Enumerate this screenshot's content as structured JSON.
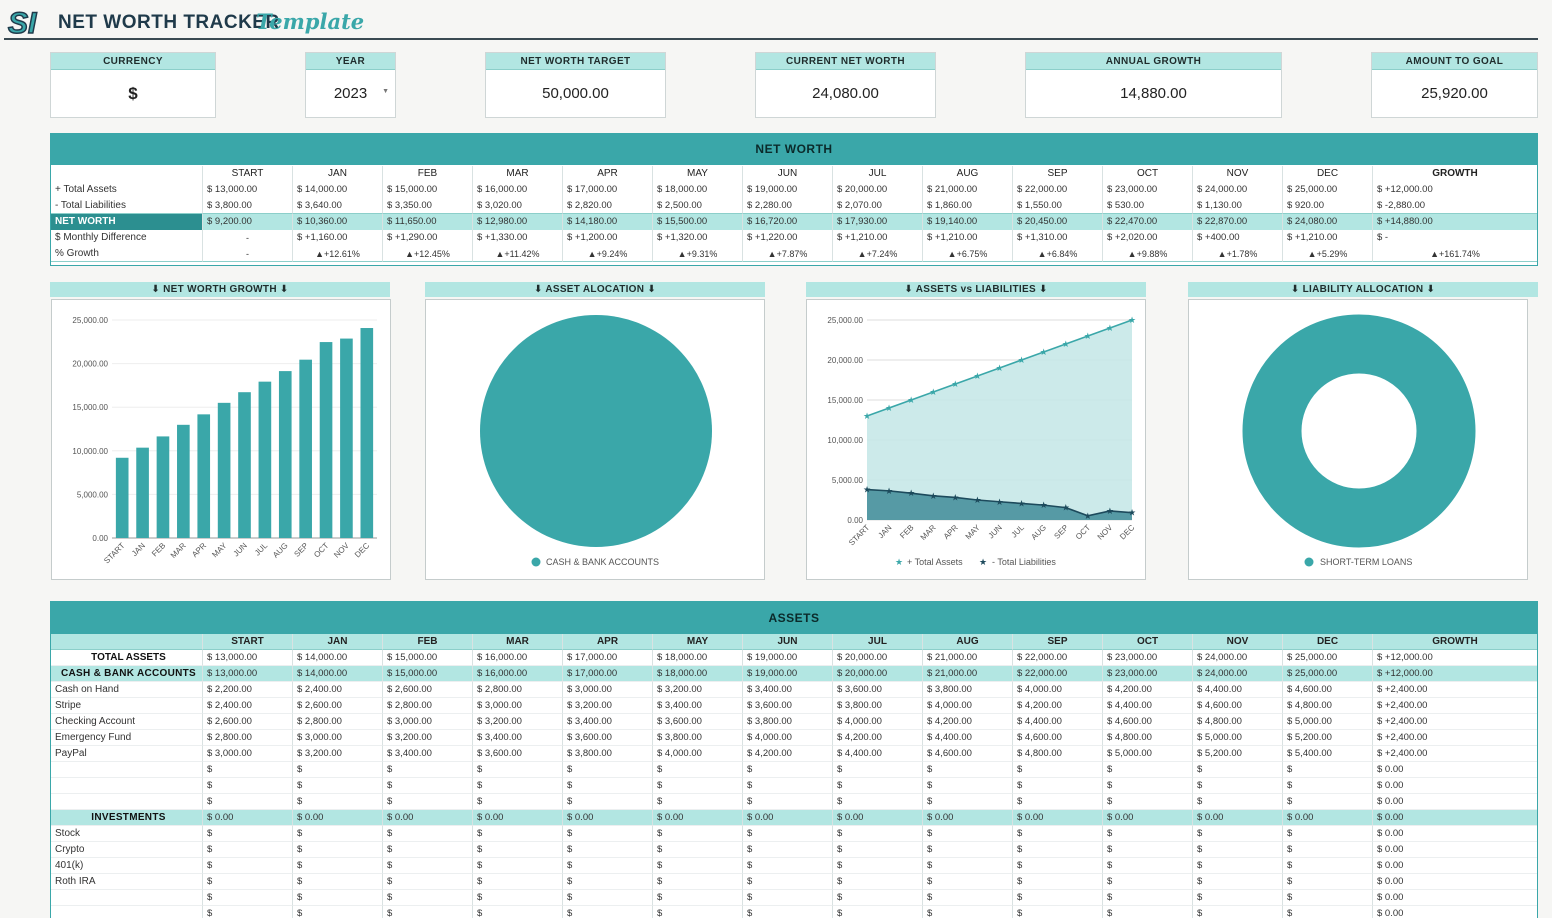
{
  "header": {
    "logo_text": "SI",
    "title": "NET WORTH TRACKER",
    "subtitle": "Template"
  },
  "kpis": {
    "currency_label": "CURRENCY",
    "currency_value": "$",
    "year_label": "YEAR",
    "year_value": "2023",
    "target_label": "NET WORTH TARGET",
    "target_value": "50,000.00",
    "current_label": "CURRENT NET WORTH",
    "current_value": "24,080.00",
    "growth_label": "ANNUAL GROWTH",
    "growth_value": "14,880.00",
    "goal_label": "AMOUNT TO GOAL",
    "goal_value": "25,920.00"
  },
  "net_worth": {
    "title": "NET WORTH",
    "columns": [
      "START",
      "JAN",
      "FEB",
      "MAR",
      "APR",
      "MAY",
      "JUN",
      "JUL",
      "AUG",
      "SEP",
      "OCT",
      "NOV",
      "DEC",
      "GROWTH"
    ],
    "rows": [
      {
        "label": "+ Total Assets",
        "cells": [
          "$  13,000.00",
          "$  14,000.00",
          "$  15,000.00",
          "$  16,000.00",
          "$  17,000.00",
          "$  18,000.00",
          "$  19,000.00",
          "$  20,000.00",
          "$  21,000.00",
          "$  22,000.00",
          "$  23,000.00",
          "$  24,000.00",
          "$  25,000.00",
          "$  +12,000.00"
        ]
      },
      {
        "label": "- Total Liabilities",
        "cells": [
          "$  3,800.00",
          "$  3,640.00",
          "$  3,350.00",
          "$  3,020.00",
          "$  2,820.00",
          "$  2,500.00",
          "$  2,280.00",
          "$  2,070.00",
          "$  1,860.00",
          "$  1,550.00",
          "$  530.00",
          "$  1,130.00",
          "$  920.00",
          "$  -2,880.00"
        ]
      },
      {
        "label": "NET WORTH",
        "cells": [
          "$  9,200.00",
          "$  10,360.00",
          "$  11,650.00",
          "$  12,980.00",
          "$  14,180.00",
          "$  15,500.00",
          "$  16,720.00",
          "$  17,930.00",
          "$  19,140.00",
          "$  20,450.00",
          "$  22,470.00",
          "$  22,870.00",
          "$  24,080.00",
          "$  +14,880.00"
        ]
      },
      {
        "label": "$ Monthly Difference",
        "cells": [
          "-",
          "$  +1,160.00",
          "$  +1,290.00",
          "$  +1,330.00",
          "$  +1,200.00",
          "$  +1,320.00",
          "$  +1,220.00",
          "$  +1,210.00",
          "$  +1,210.00",
          "$  +1,310.00",
          "$  +2,020.00",
          "$  +400.00",
          "$  +1,210.00",
          "$                              -"
        ]
      },
      {
        "label": "% Growth",
        "cells": [
          "-",
          "▲+12.61%",
          "▲+12.45%",
          "▲+11.42%",
          "▲+9.24%",
          "▲+9.31%",
          "▲+7.87%",
          "▲+7.24%",
          "▲+6.75%",
          "▲+6.84%",
          "▲+9.88%",
          "▲+1.78%",
          "▲+5.29%",
          "▲+161.74%"
        ]
      }
    ]
  },
  "charts": {
    "titles": [
      "⬇ NET WORTH GROWTH ⬇",
      "⬇ ASSET ALOCATION ⬇",
      "⬇ ASSETS vs LIABILITIES ⬇",
      "⬇ LIABILITY ALLOCATION ⬇"
    ],
    "asset_legend": "CASH & BANK ACCOUNTS",
    "liability_legend": "SHORT-TERM LOANS",
    "assets_legend": "+ Total Assets",
    "liabilities_legend": "- Total Liabilities",
    "colors": {
      "teal": "#3aa7a9",
      "navy": "#1d4a5c",
      "area_light": "#c3e6e6"
    }
  },
  "chart_data": [
    {
      "type": "bar",
      "title": "⬇ NET WORTH GROWTH ⬇",
      "categories": [
        "START",
        "JAN",
        "FEB",
        "MAR",
        "APR",
        "MAY",
        "JUN",
        "JUL",
        "AUG",
        "SEP",
        "OCT",
        "NOV",
        "DEC"
      ],
      "values": [
        9200,
        10360,
        11650,
        12980,
        14180,
        15500,
        16720,
        17930,
        19140,
        20450,
        22470,
        22870,
        24080
      ],
      "yticks": [
        "0.00",
        "5,000.00",
        "10,000.00",
        "15,000.00",
        "20,000.00",
        "25,000.00"
      ],
      "ylim": [
        0,
        25000
      ]
    },
    {
      "type": "pie",
      "title": "⬇ ASSET ALOCATION ⬇",
      "labels": [
        "CASH & BANK ACCOUNTS"
      ],
      "values": [
        100
      ]
    },
    {
      "type": "area",
      "title": "⬇ ASSETS vs LIABILITIES ⬇",
      "categories": [
        "START",
        "JAN",
        "FEB",
        "MAR",
        "APR",
        "MAY",
        "JUN",
        "JUL",
        "AUG",
        "SEP",
        "OCT",
        "NOV",
        "DEC"
      ],
      "series": [
        {
          "name": "+ Total Assets",
          "values": [
            13000,
            14000,
            15000,
            16000,
            17000,
            18000,
            19000,
            20000,
            21000,
            22000,
            23000,
            24000,
            25000
          ]
        },
        {
          "name": "- Total Liabilities",
          "values": [
            3800,
            3640,
            3350,
            3020,
            2820,
            2500,
            2280,
            2070,
            1860,
            1550,
            530,
            1130,
            920
          ]
        }
      ],
      "yticks": [
        "0.00",
        "5,000.00",
        "10,000.00",
        "15,000.00",
        "20,000.00",
        "25,000.00"
      ],
      "ylim": [
        0,
        25000
      ]
    },
    {
      "type": "pie",
      "title": "⬇ LIABILITY ALLOCATION ⬇",
      "labels": [
        "SHORT-TERM LOANS"
      ],
      "values": [
        100
      ]
    }
  ],
  "assets": {
    "title": "ASSETS",
    "columns": [
      "START",
      "JAN",
      "FEB",
      "MAR",
      "APR",
      "MAY",
      "JUN",
      "JUL",
      "AUG",
      "SEP",
      "OCT",
      "NOV",
      "DEC",
      "GROWTH"
    ],
    "rows": [
      {
        "kind": "total",
        "label": "TOTAL ASSETS",
        "cells": [
          "$  13,000.00",
          "$  14,000.00",
          "$  15,000.00",
          "$  16,000.00",
          "$  17,000.00",
          "$  18,000.00",
          "$  19,000.00",
          "$  20,000.00",
          "$  21,000.00",
          "$  22,000.00",
          "$  23,000.00",
          "$  24,000.00",
          "$  25,000.00",
          "$  +12,000.00"
        ]
      },
      {
        "kind": "section",
        "label": "CASH & BANK ACCOUNTS",
        "cells": [
          "$  13,000.00",
          "$  14,000.00",
          "$  15,000.00",
          "$  16,000.00",
          "$  17,000.00",
          "$  18,000.00",
          "$  19,000.00",
          "$  20,000.00",
          "$  21,000.00",
          "$  22,000.00",
          "$  23,000.00",
          "$  24,000.00",
          "$  25,000.00",
          "$  +12,000.00"
        ]
      },
      {
        "kind": "item",
        "label": "Cash on Hand",
        "cells": [
          "$  2,200.00",
          "$  2,400.00",
          "$  2,600.00",
          "$  2,800.00",
          "$  3,000.00",
          "$  3,200.00",
          "$  3,400.00",
          "$  3,600.00",
          "$  3,800.00",
          "$  4,000.00",
          "$  4,200.00",
          "$  4,400.00",
          "$  4,600.00",
          "$  +2,400.00"
        ]
      },
      {
        "kind": "item",
        "label": "Stripe",
        "cells": [
          "$  2,400.00",
          "$  2,600.00",
          "$  2,800.00",
          "$  3,000.00",
          "$  3,200.00",
          "$  3,400.00",
          "$  3,600.00",
          "$  3,800.00",
          "$  4,000.00",
          "$  4,200.00",
          "$  4,400.00",
          "$  4,600.00",
          "$  4,800.00",
          "$  +2,400.00"
        ]
      },
      {
        "kind": "item",
        "label": "Checking Account",
        "cells": [
          "$  2,600.00",
          "$  2,800.00",
          "$  3,000.00",
          "$  3,200.00",
          "$  3,400.00",
          "$  3,600.00",
          "$  3,800.00",
          "$  4,000.00",
          "$  4,200.00",
          "$  4,400.00",
          "$  4,600.00",
          "$  4,800.00",
          "$  5,000.00",
          "$  +2,400.00"
        ]
      },
      {
        "kind": "item",
        "label": "Emergency Fund",
        "cells": [
          "$  2,800.00",
          "$  3,000.00",
          "$  3,200.00",
          "$  3,400.00",
          "$  3,600.00",
          "$  3,800.00",
          "$  4,000.00",
          "$  4,200.00",
          "$  4,400.00",
          "$  4,600.00",
          "$  4,800.00",
          "$  5,000.00",
          "$  5,200.00",
          "$  +2,400.00"
        ]
      },
      {
        "kind": "item",
        "label": "PayPal",
        "cells": [
          "$  3,000.00",
          "$  3,200.00",
          "$  3,400.00",
          "$  3,600.00",
          "$  3,800.00",
          "$  4,000.00",
          "$  4,200.00",
          "$  4,400.00",
          "$  4,600.00",
          "$  4,800.00",
          "$  5,000.00",
          "$  5,200.00",
          "$  5,400.00",
          "$  +2,400.00"
        ]
      },
      {
        "kind": "item",
        "label": "",
        "cells": [
          "$",
          "$",
          "$",
          "$",
          "$",
          "$",
          "$",
          "$",
          "$",
          "$",
          "$",
          "$",
          "$",
          "$  0.00"
        ]
      },
      {
        "kind": "item",
        "label": "",
        "cells": [
          "$",
          "$",
          "$",
          "$",
          "$",
          "$",
          "$",
          "$",
          "$",
          "$",
          "$",
          "$",
          "$",
          "$  0.00"
        ]
      },
      {
        "kind": "item",
        "label": "",
        "cells": [
          "$",
          "$",
          "$",
          "$",
          "$",
          "$",
          "$",
          "$",
          "$",
          "$",
          "$",
          "$",
          "$",
          "$  0.00"
        ]
      },
      {
        "kind": "section",
        "label": "INVESTMENTS",
        "cells": [
          "$  0.00",
          "$  0.00",
          "$  0.00",
          "$  0.00",
          "$  0.00",
          "$  0.00",
          "$  0.00",
          "$  0.00",
          "$  0.00",
          "$  0.00",
          "$  0.00",
          "$  0.00",
          "$  0.00",
          "$  0.00"
        ]
      },
      {
        "kind": "item",
        "label": "Stock",
        "cells": [
          "$",
          "$",
          "$",
          "$",
          "$",
          "$",
          "$",
          "$",
          "$",
          "$",
          "$",
          "$",
          "$",
          "$  0.00"
        ]
      },
      {
        "kind": "item",
        "label": "Crypto",
        "cells": [
          "$",
          "$",
          "$",
          "$",
          "$",
          "$",
          "$",
          "$",
          "$",
          "$",
          "$",
          "$",
          "$",
          "$  0.00"
        ]
      },
      {
        "kind": "item",
        "label": "401(k)",
        "cells": [
          "$",
          "$",
          "$",
          "$",
          "$",
          "$",
          "$",
          "$",
          "$",
          "$",
          "$",
          "$",
          "$",
          "$  0.00"
        ]
      },
      {
        "kind": "item",
        "label": "Roth IRA",
        "cells": [
          "$",
          "$",
          "$",
          "$",
          "$",
          "$",
          "$",
          "$",
          "$",
          "$",
          "$",
          "$",
          "$",
          "$  0.00"
        ]
      },
      {
        "kind": "item",
        "label": "",
        "cells": [
          "$",
          "$",
          "$",
          "$",
          "$",
          "$",
          "$",
          "$",
          "$",
          "$",
          "$",
          "$",
          "$",
          "$  0.00"
        ]
      },
      {
        "kind": "item",
        "label": "",
        "cells": [
          "$",
          "$",
          "$",
          "$",
          "$",
          "$",
          "$",
          "$",
          "$",
          "$",
          "$",
          "$",
          "$",
          "$  0.00"
        ]
      }
    ]
  }
}
